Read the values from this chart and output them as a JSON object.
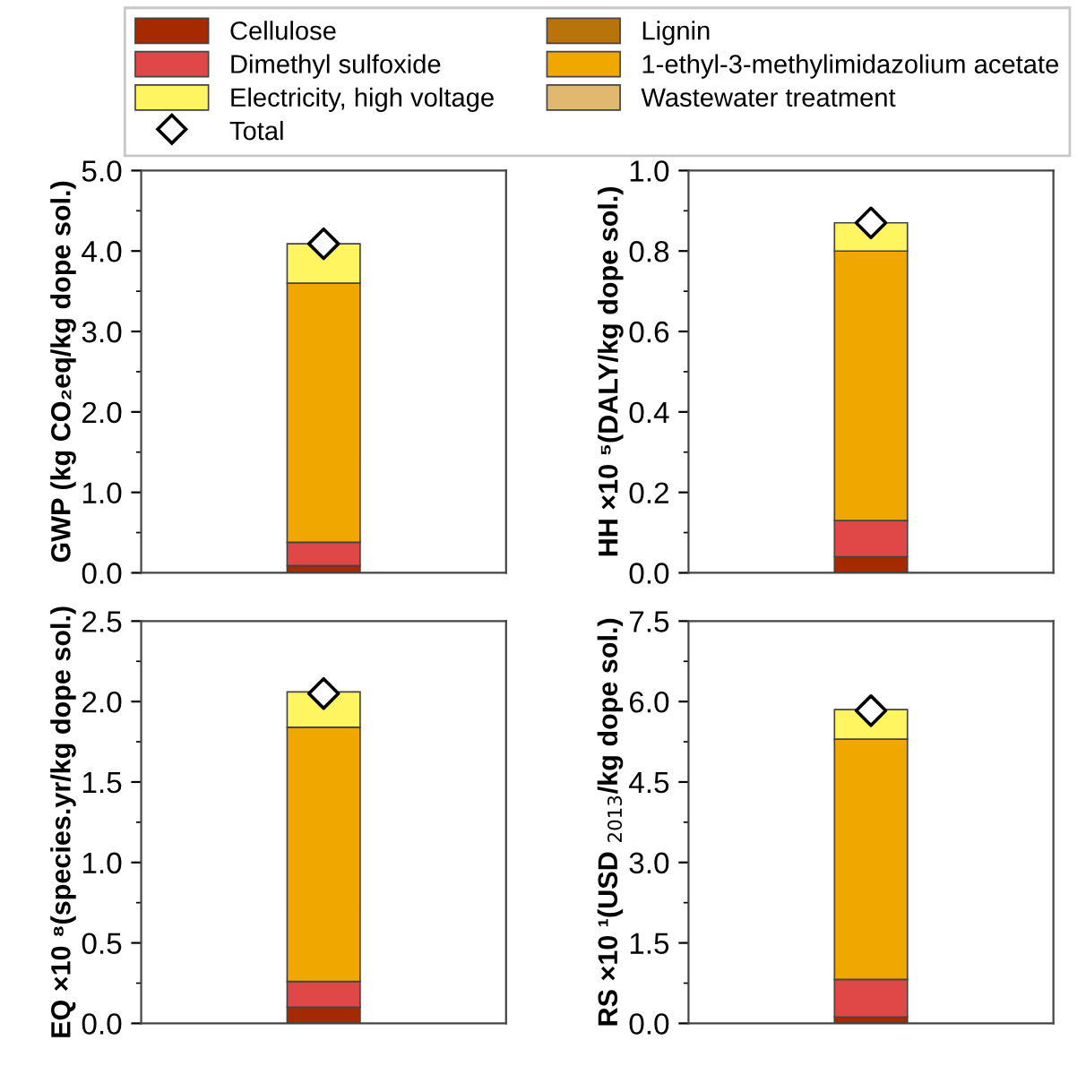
{
  "chart_data": [
    {
      "type": "bar",
      "stacked": true,
      "categories": [
        null
      ],
      "ylabel": "GWP (kg CO₂eq/kg dope sol.)",
      "ylim": [
        0,
        5
      ],
      "yticks": [
        {
          "value": 0,
          "label": "0.0"
        },
        {
          "value": 1,
          "label": "1.0"
        },
        {
          "value": 2,
          "label": "2.0"
        },
        {
          "value": 3,
          "label": "3.0"
        },
        {
          "value": 4,
          "label": "4.0"
        },
        {
          "value": 5,
          "label": "5.0"
        }
      ],
      "tick_labels": "y",
      "legend": "top",
      "grid": false,
      "series": [
        {
          "name": "Cellulose",
          "color": "#a52a00",
          "values": [
            0.09
          ]
        },
        {
          "name": "Lignin",
          "color": "#b8730a",
          "values": [
            null
          ]
        },
        {
          "name": "Dimethyl sulfoxide",
          "color": "#e04848",
          "values": [
            0.29
          ]
        },
        {
          "name": "1-ethyl-3-methylimidazolium acetate",
          "color": "#f0a800",
          "values": [
            3.22
          ]
        },
        {
          "name": "Wastewater treatment",
          "color": "#e0b870",
          "values": [
            null
          ]
        },
        {
          "name": "Electricity, high voltage",
          "color": "#fff560",
          "values": [
            0.49
          ]
        },
        {
          "name": "Total",
          "type": "scatter",
          "marker": "diamond",
          "color": "#ffffff",
          "values": [
            4.09
          ]
        }
      ]
    },
    {
      "type": "bar",
      "stacked": true,
      "categories": [
        null
      ],
      "ylabel": "HH ×10 ⁵(DALY/kg dope sol.)",
      "ylim": [
        0,
        1
      ],
      "yticks": [
        {
          "value": 0,
          "label": "0.0"
        },
        0.2,
        0.4,
        0.6,
        0.8,
        {
          "value": 1,
          "label": "1.0"
        }
      ],
      "tick_labels": "y",
      "grid": false,
      "series": [
        {
          "color": "#a52a00",
          "values": [
            0.04
          ]
        },
        {
          "color": "#e04848",
          "values": [
            0.09
          ]
        },
        {
          "color": "#f0a800",
          "values": [
            0.67
          ]
        },
        {
          "color": "#fff560",
          "values": [
            0.07
          ]
        },
        {
          "type": "scatter",
          "marker": "diamond",
          "color": "#ffffff",
          "values": [
            0.87
          ]
        }
      ]
    },
    {
      "type": "bar",
      "stacked": true,
      "categories": [
        null
      ],
      "ylabel": "EQ ×10 ⁸(species.yr/kg dope sol.)",
      "ylim": [
        0,
        2.5
      ],
      "yticks": [
        {
          "value": 0,
          "label": "0.0"
        },
        0.5,
        {
          "value": 1,
          "label": "1.0"
        },
        1.5,
        {
          "value": 2,
          "label": "2.0"
        },
        2.5
      ],
      "tick_labels": "y",
      "grid": false,
      "series": [
        {
          "color": "#a52a00",
          "values": [
            0.1
          ]
        },
        {
          "color": "#e04848",
          "values": [
            0.16
          ]
        },
        {
          "color": "#f0a800",
          "values": [
            1.58
          ]
        },
        {
          "color": "#fff560",
          "values": [
            0.22
          ]
        },
        {
          "type": "scatter",
          "marker": "diamond",
          "color": "#ffffff",
          "values": [
            2.05
          ]
        }
      ]
    },
    {
      "type": "bar",
      "stacked": true,
      "categories": [
        null
      ],
      "ylabel": "RS ×10 ¹(USD $_{2013}$/kg dope sol.)",
      "ylim": [
        0,
        7.5
      ],
      "yticks": [
        {
          "value": 0,
          "label": "0.0"
        },
        1.5,
        {
          "value": 3,
          "label": "3.0"
        },
        4.5,
        {
          "value": 6,
          "label": "6.0"
        },
        7.5
      ],
      "tick_labels": "y",
      "grid": false,
      "series": [
        {
          "color": "#a52a00",
          "values": [
            0.12
          ]
        },
        {
          "color": "#e04848",
          "values": [
            0.7
          ]
        },
        {
          "color": "#f0a800",
          "values": [
            4.48
          ]
        },
        {
          "color": "#fff560",
          "values": [
            0.55
          ]
        },
        {
          "type": "scatter",
          "marker": "diamond",
          "color": "#ffffff",
          "values": [
            5.83
          ]
        }
      ]
    }
  ]
}
